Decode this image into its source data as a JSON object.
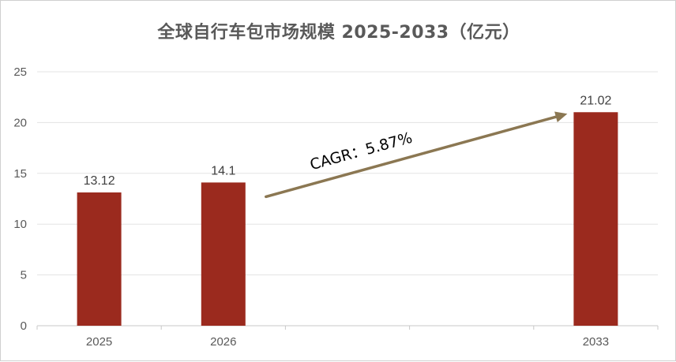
{
  "chart_data": {
    "type": "bar",
    "title": "全球自行车包市场规模 2025-2033（亿元）",
    "xlabel": "",
    "ylabel": "",
    "categories": [
      "2025",
      "2026",
      "2033"
    ],
    "category_slots": [
      0,
      1,
      4
    ],
    "slot_count": 5,
    "values": [
      13.12,
      14.1,
      21.02
    ],
    "data_labels": [
      "13.12",
      "14.1",
      "21.02"
    ],
    "ylim": [
      0,
      25
    ],
    "yticks": [
      0,
      5,
      10,
      15,
      20,
      25
    ],
    "grid": true,
    "legend": "none",
    "annotation": {
      "text": "CAGR：5.87%",
      "from_category": "2026",
      "to_category": "2033"
    },
    "colors": {
      "bar": "#9B2A1E",
      "arrow": "#8B7752",
      "grid": "#e3e3e3",
      "axis": "#c8c8c8"
    }
  }
}
